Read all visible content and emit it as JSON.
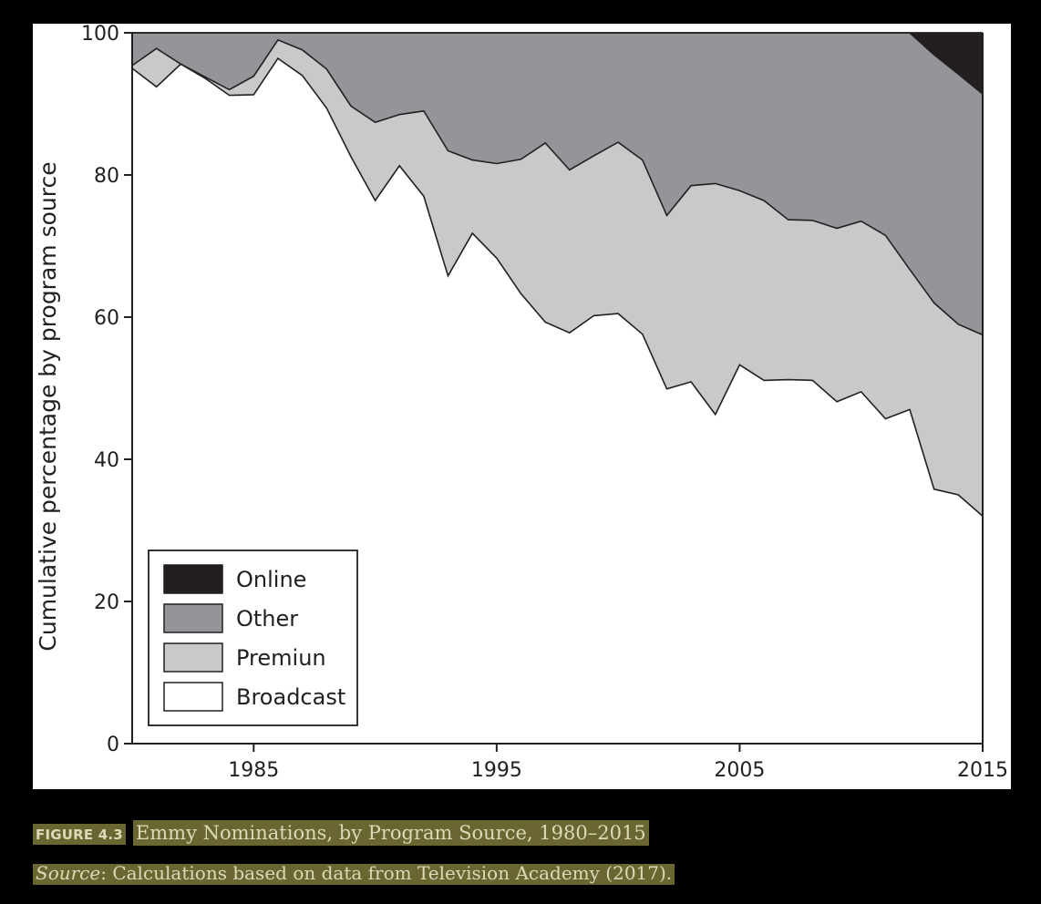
{
  "chart_data": {
    "type": "area",
    "stacked": true,
    "ylabel": "Cumulative percentage by program source",
    "xlabel": "",
    "xlim": [
      1980,
      2015
    ],
    "ylim": [
      0,
      100
    ],
    "x_ticks": [
      1985,
      1995,
      2005,
      2015
    ],
    "y_ticks": [
      0,
      20,
      40,
      60,
      80,
      100
    ],
    "grid": false,
    "legend_position": "bottom-left",
    "colors": {
      "Online": "#231f20",
      "Other": "#939598",
      "Premiun": "#c8c9cb",
      "Broadcast": "#ffffff",
      "stroke": "#231f20"
    },
    "legend": [
      "Online",
      "Other",
      "Premiun",
      "Broadcast"
    ],
    "x": [
      1980,
      1981,
      1982,
      1983,
      1984,
      1985,
      1986,
      1987,
      1988,
      1989,
      1990,
      1991,
      1992,
      1993,
      1994,
      1995,
      1996,
      1997,
      1998,
      1999,
      2000,
      2001,
      2002,
      2003,
      2004,
      2005,
      2006,
      2007,
      2008,
      2009,
      2010,
      2011,
      2012,
      2013,
      2014,
      2015
    ],
    "cumulative_boundaries": [
      {
        "name": "Broadcast",
        "values": [
          95.0,
          92.4,
          95.6,
          93.6,
          91.2,
          91.3,
          96.4,
          94.0,
          89.4,
          82.6,
          76.4,
          81.3,
          77.0,
          65.8,
          71.8,
          68.3,
          63.3,
          59.3,
          57.8,
          60.2,
          60.5,
          57.6,
          49.9,
          50.9,
          46.3,
          53.3,
          51.1,
          51.2,
          51.1,
          48.1,
          49.5,
          45.7,
          47.0,
          35.8,
          35.0,
          32.0
        ]
      },
      {
        "name": "Premiun",
        "values": [
          95.4,
          97.8,
          95.6,
          93.8,
          92.0,
          93.9,
          99.0,
          97.6,
          94.9,
          89.7,
          87.4,
          88.5,
          89.0,
          83.4,
          82.1,
          81.6,
          82.2,
          84.5,
          80.7,
          82.7,
          84.6,
          82.1,
          74.3,
          78.5,
          78.8,
          77.8,
          76.4,
          73.7,
          73.6,
          72.5,
          73.5,
          71.5,
          66.7,
          62.0,
          59.0,
          57.5
        ]
      },
      {
        "name": "Other",
        "values": [
          100,
          100,
          100,
          100,
          100,
          100,
          100,
          100,
          100,
          100,
          100,
          100,
          100,
          100,
          100,
          100,
          100,
          100,
          100,
          100,
          100,
          100,
          100,
          100,
          100,
          100,
          100,
          100,
          100,
          100,
          100,
          100,
          100,
          96.9,
          94.2,
          91.4
        ]
      },
      {
        "name": "Online",
        "values": [
          100,
          100,
          100,
          100,
          100,
          100,
          100,
          100,
          100,
          100,
          100,
          100,
          100,
          100,
          100,
          100,
          100,
          100,
          100,
          100,
          100,
          100,
          100,
          100,
          100,
          100,
          100,
          100,
          100,
          100,
          100,
          100,
          100,
          100,
          100,
          100
        ]
      }
    ]
  },
  "caption": {
    "figure_label": "FIGURE 4.3",
    "title": "Emmy Nominations, by Program Source, 1980–2015",
    "source_label": "Source",
    "source_text": ": Calculations based on data from Television Academy (2017)."
  }
}
